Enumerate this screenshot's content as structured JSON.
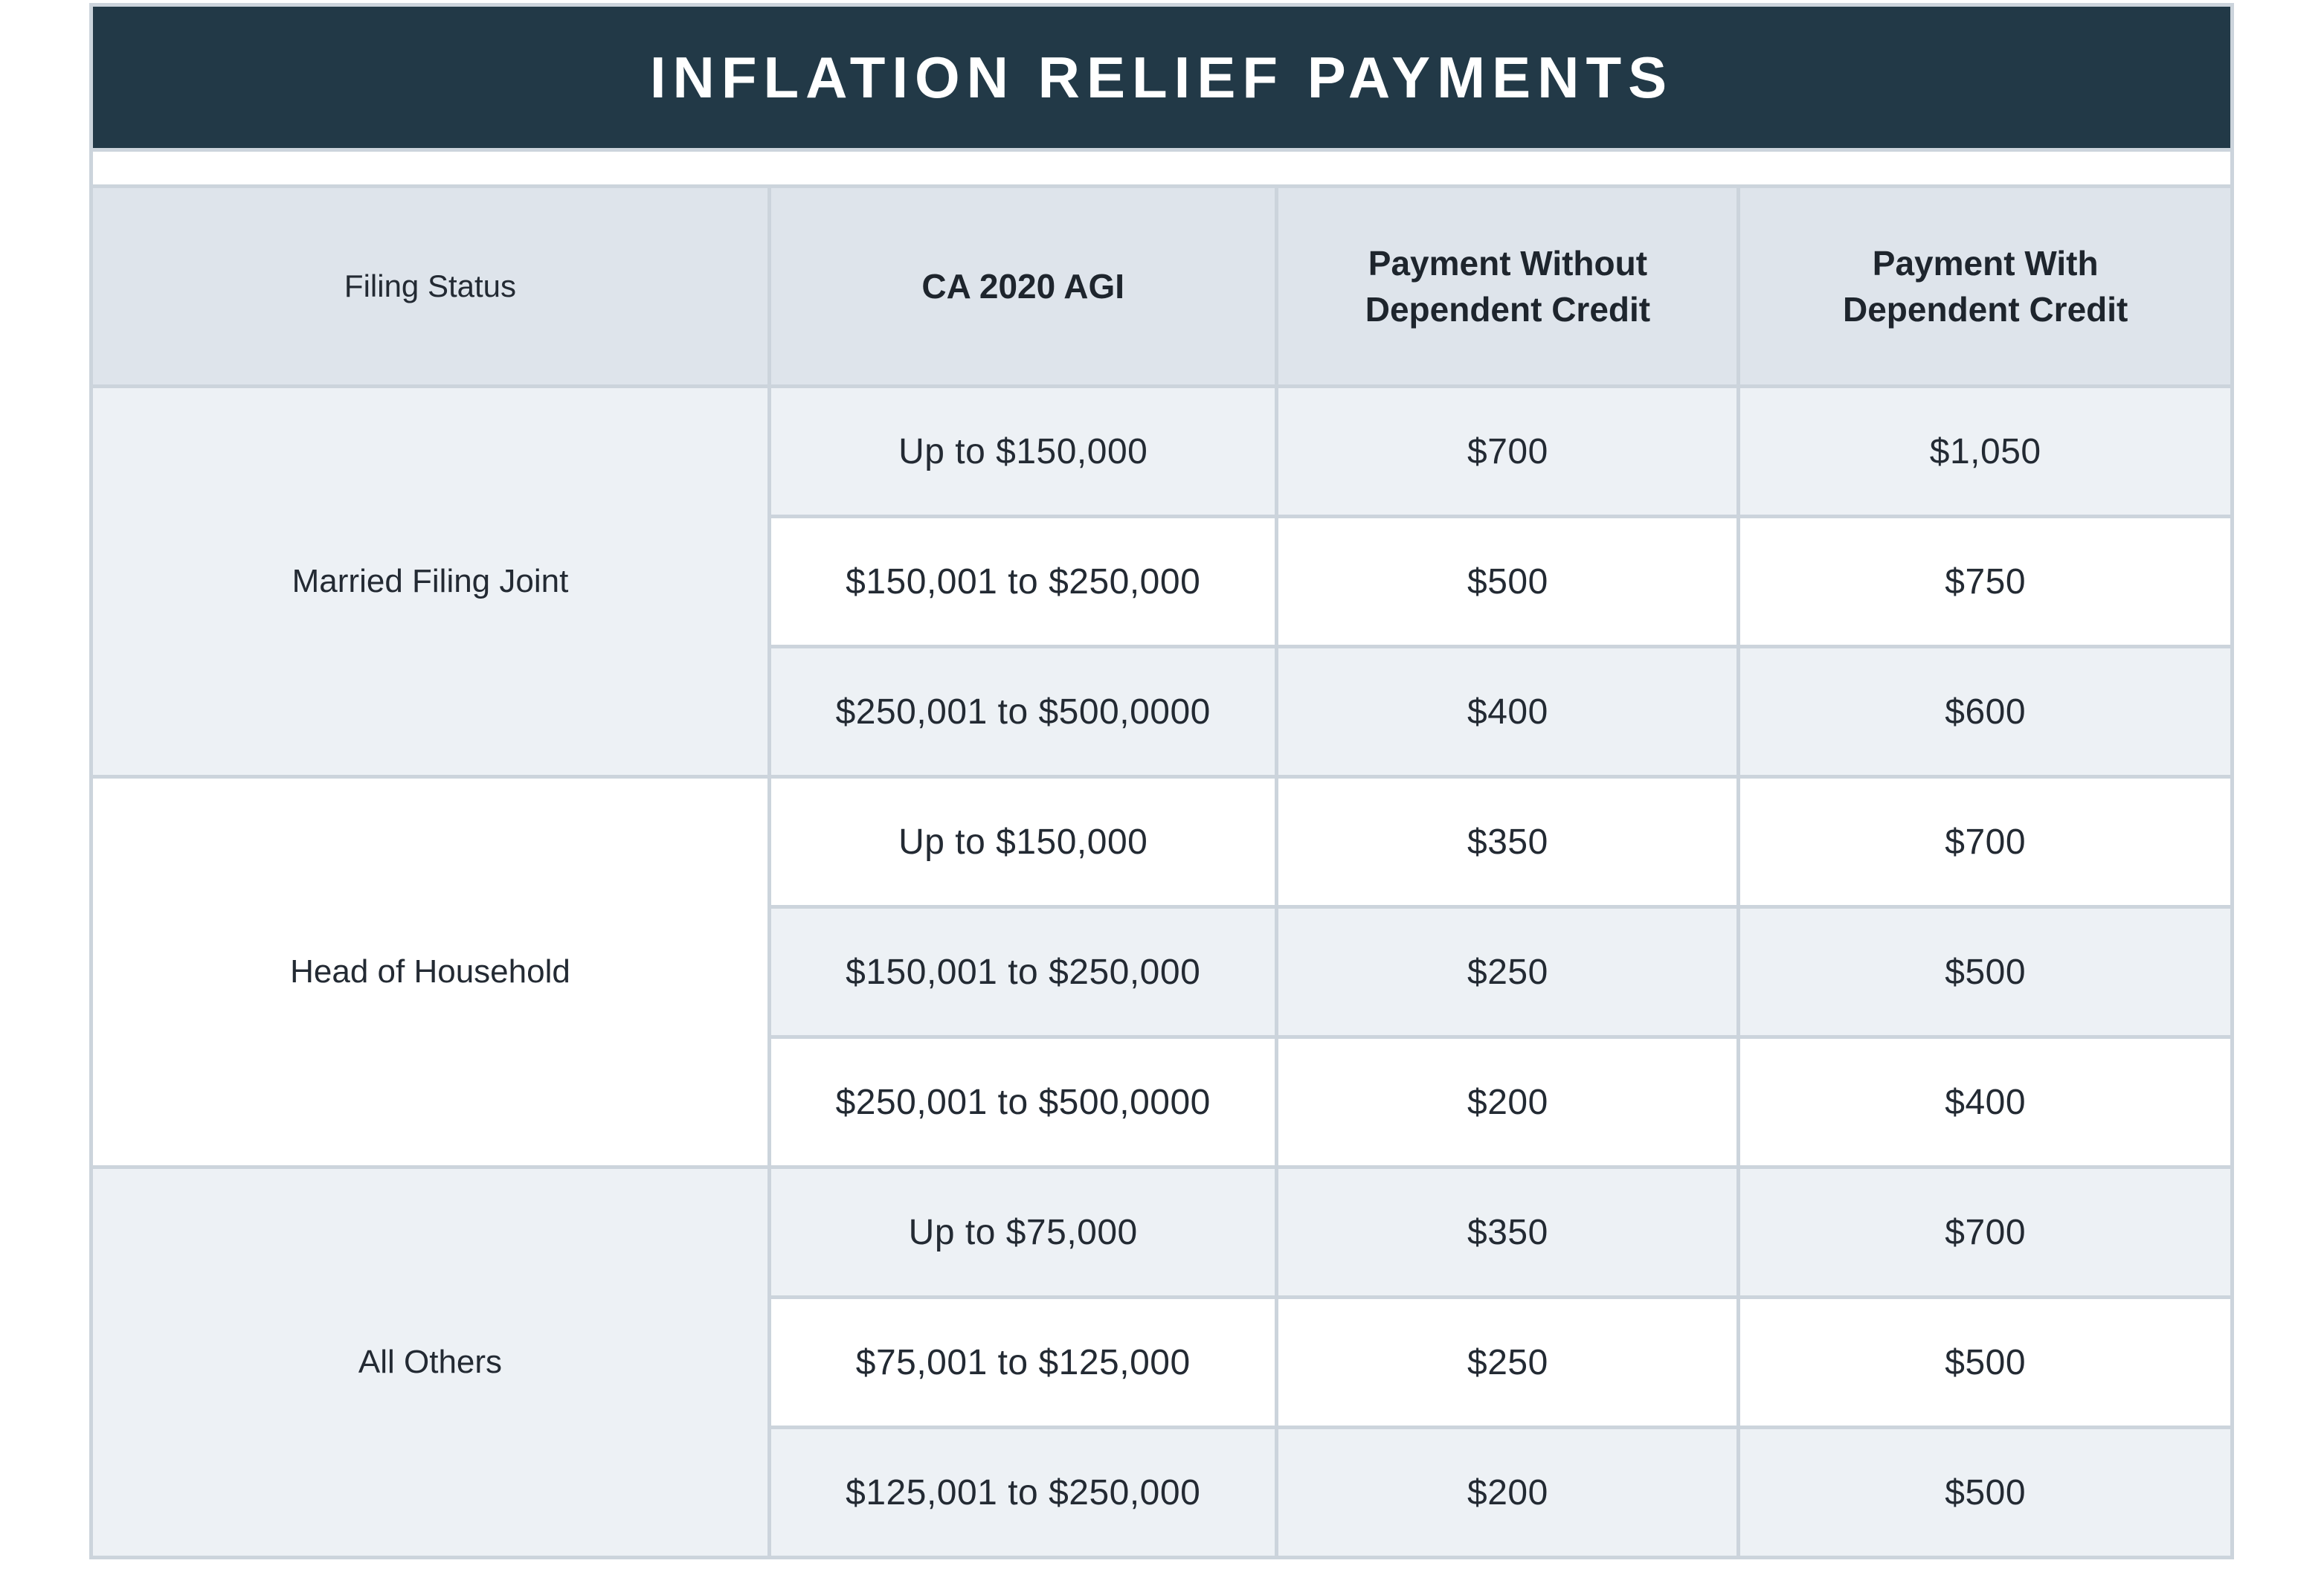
{
  "title": "INFLATION RELIEF PAYMENTS",
  "colors": {
    "title_band_bg": "#223947",
    "title_text": "#ffffff",
    "header_row_bg": "#dee4eb",
    "shaded_row_bg": "#edf1f5",
    "plain_row_bg": "#ffffff",
    "grid_line": "#ccd4dc",
    "body_text": "#232a33"
  },
  "table": {
    "columns": [
      "Filing Status",
      "CA 2020 AGI",
      "Payment Without Dependent Credit",
      "Payment With Dependent Credit"
    ],
    "groups": [
      {
        "filing_status": "Married Filing Joint",
        "rows": [
          {
            "agi": "Up to $150,000",
            "payment_without": "$700",
            "payment_with": "$1,050"
          },
          {
            "agi": "$150,001 to $250,000",
            "payment_without": "$500",
            "payment_with": "$750"
          },
          {
            "agi": "$250,001 to $500,0000",
            "payment_without": "$400",
            "payment_with": "$600"
          }
        ]
      },
      {
        "filing_status": "Head of Household",
        "rows": [
          {
            "agi": "Up to $150,000",
            "payment_without": "$350",
            "payment_with": "$700"
          },
          {
            "agi": "$150,001 to $250,000",
            "payment_without": "$250",
            "payment_with": "$500"
          },
          {
            "agi": "$250,001 to $500,0000",
            "payment_without": "$200",
            "payment_with": "$400"
          }
        ]
      },
      {
        "filing_status": "All Others",
        "rows": [
          {
            "agi": "Up to $75,000",
            "payment_without": "$350",
            "payment_with": "$700"
          },
          {
            "agi": "$75,001 to $125,000",
            "payment_without": "$250",
            "payment_with": "$500"
          },
          {
            "agi": "$125,001 to $250,000",
            "payment_without": "$200",
            "payment_with": "$500"
          }
        ]
      }
    ]
  }
}
